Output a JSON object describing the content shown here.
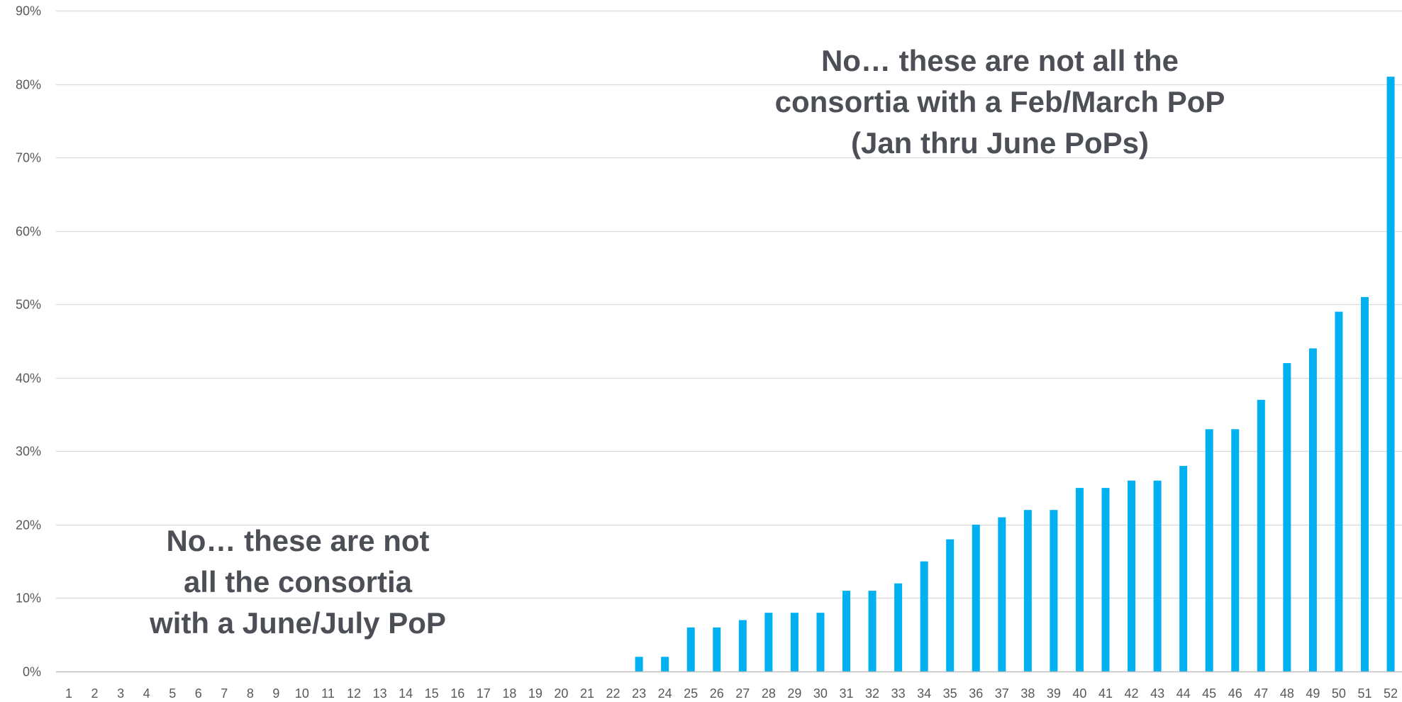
{
  "chart_data": {
    "type": "bar",
    "categories": [
      "1",
      "2",
      "3",
      "4",
      "5",
      "6",
      "7",
      "8",
      "9",
      "10",
      "11",
      "12",
      "13",
      "14",
      "15",
      "16",
      "17",
      "18",
      "19",
      "20",
      "21",
      "22",
      "23",
      "24",
      "25",
      "26",
      "27",
      "28",
      "29",
      "30",
      "31",
      "32",
      "33",
      "34",
      "35",
      "36",
      "37",
      "38",
      "39",
      "40",
      "41",
      "42",
      "43",
      "44",
      "45",
      "46",
      "47",
      "48",
      "49",
      "50",
      "51",
      "52"
    ],
    "series": [
      {
        "values": [
          0,
          0,
          0,
          0,
          0,
          0,
          0,
          0,
          0,
          0,
          0,
          0,
          0,
          0,
          0,
          0,
          0,
          0,
          0,
          0,
          0,
          0,
          2,
          2,
          6,
          6,
          7,
          8,
          8,
          8,
          11,
          11,
          12,
          15,
          18,
          20,
          21,
          22,
          22,
          25,
          25,
          26,
          26,
          28,
          33,
          33,
          37,
          42,
          44,
          49,
          51,
          81
        ],
        "color": "#00b0f0"
      }
    ],
    "ylim": [
      0,
      90
    ],
    "yticks": [
      0,
      10,
      20,
      30,
      40,
      50,
      60,
      70,
      80,
      90
    ],
    "ytick_labels": [
      "0%",
      "10%",
      "20%",
      "30%",
      "40%",
      "50%",
      "60%",
      "70%",
      "80%",
      "90%"
    ],
    "grid": true,
    "gridline_color": "#d9d9d9",
    "axis_color": "#bfbfbf",
    "title": "",
    "xlabel": "",
    "ylabel": "",
    "annotations": [
      {
        "id": "top",
        "lines": [
          "No… these are not all the",
          "consortia with a Feb/March PoP",
          "(Jan thru June PoPs)"
        ]
      },
      {
        "id": "bottom",
        "lines": [
          "No… these are not",
          "all the consortia",
          "with a June/July PoP"
        ]
      }
    ]
  }
}
